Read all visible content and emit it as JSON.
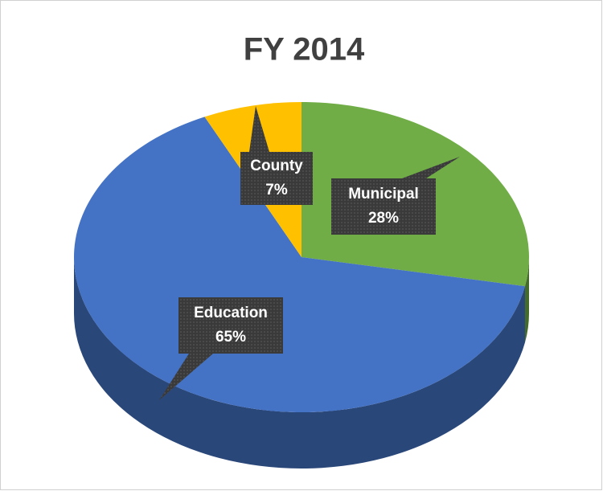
{
  "chart_data": {
    "type": "pie",
    "title": "FY 2014",
    "categories": [
      "Municipal",
      "Education",
      "County"
    ],
    "values": [
      28,
      65,
      7
    ],
    "value_labels": [
      "28%",
      "65%",
      "7%"
    ],
    "colors": [
      "#70ad47",
      "#4472c4",
      "#ffc000"
    ]
  }
}
